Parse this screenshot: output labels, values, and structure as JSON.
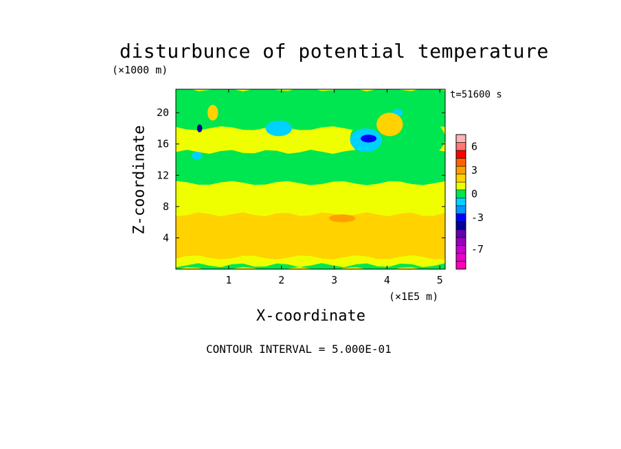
{
  "chart_data": {
    "type": "heatmap",
    "title": "disturbunce of potential temperature",
    "time_label": "t=51600 s",
    "xlabel": "X-coordinate",
    "ylabel": "Z-coordinate",
    "x_unit": "(×1E5 m)",
    "y_unit": "(×1000 m)",
    "xlim": [
      0,
      5.1
    ],
    "ylim": [
      0,
      23
    ],
    "x_ticks": [
      1,
      2,
      3,
      4,
      5
    ],
    "y_ticks": [
      4,
      8,
      12,
      16,
      20
    ],
    "contour_interval_text": "CONTOUR INTERVAL = 5.000E-01",
    "colorbar": {
      "tick_labels": [
        "6",
        "3",
        "0",
        "-3",
        "-7"
      ],
      "tick_values": [
        6,
        3,
        0,
        -3,
        -7
      ],
      "vmin": -9,
      "vmax": 8,
      "levels": [
        {
          "from": -9,
          "to": -8,
          "color": "#ff00b4"
        },
        {
          "from": -8,
          "to": -7,
          "color": "#e600c8"
        },
        {
          "from": -7,
          "to": -6,
          "color": "#c800d2"
        },
        {
          "from": -6,
          "to": -5,
          "color": "#9600be"
        },
        {
          "from": -5,
          "to": -4,
          "color": "#6400aa"
        },
        {
          "from": -4,
          "to": -3,
          "color": "#000096"
        },
        {
          "from": -3,
          "to": -2,
          "color": "#0000ff"
        },
        {
          "from": -2,
          "to": -1,
          "color": "#0096ff"
        },
        {
          "from": -1,
          "to": 0,
          "color": "#00d2ff"
        },
        {
          "from": 0,
          "to": 1,
          "color": "#00e650"
        },
        {
          "from": 1,
          "to": 2,
          "color": "#f0ff00"
        },
        {
          "from": 2,
          "to": 3,
          "color": "#ffd200"
        },
        {
          "from": 3,
          "to": 4,
          "color": "#ffa000"
        },
        {
          "from": 4,
          "to": 5,
          "color": "#ff6400"
        },
        {
          "from": 5,
          "to": 6,
          "color": "#ff0000"
        },
        {
          "from": 6,
          "to": 7,
          "color": "#ff7878"
        },
        {
          "from": 7,
          "to": 8,
          "color": "#ffb4b4"
        }
      ]
    },
    "regions": [
      {
        "value": 1.5,
        "x": [
          0,
          5.1
        ],
        "y": [
          0,
          23
        ],
        "shape": "background"
      },
      {
        "value": 2.5,
        "x": [
          0,
          5.1
        ],
        "y": [
          1.5,
          7
        ],
        "shape": "band"
      },
      {
        "value": 3.5,
        "x": [
          2.9,
          3.4
        ],
        "y": [
          6,
          7
        ],
        "shape": "blob"
      },
      {
        "value": 0.5,
        "x": [
          0,
          5.1
        ],
        "y": [
          11,
          15
        ],
        "shape": "band"
      },
      {
        "value": 0.5,
        "x": [
          0,
          5.1
        ],
        "y": [
          18,
          23
        ],
        "shape": "band"
      },
      {
        "value": 0.5,
        "x": [
          3.3,
          5.1
        ],
        "y": [
          13.5,
          20
        ],
        "shape": "blob"
      },
      {
        "value": -0.5,
        "x": [
          3.3,
          3.9
        ],
        "y": [
          15,
          18
        ],
        "shape": "blob"
      },
      {
        "value": -2.5,
        "x": [
          3.5,
          3.8
        ],
        "y": [
          16.2,
          17.2
        ],
        "shape": "blob"
      },
      {
        "value": -0.5,
        "x": [
          1.7,
          2.2
        ],
        "y": [
          17,
          19
        ],
        "shape": "blob"
      },
      {
        "value": -0.5,
        "x": [
          0.3,
          0.5
        ],
        "y": [
          14,
          15
        ],
        "shape": "blob"
      },
      {
        "value": -3.5,
        "x": [
          0.4,
          0.5
        ],
        "y": [
          17.5,
          18.5
        ],
        "shape": "blob"
      },
      {
        "value": -0.5,
        "x": [
          4.1,
          4.3
        ],
        "y": [
          19.5,
          20.5
        ],
        "shape": "blob"
      },
      {
        "value": 2.5,
        "x": [
          3.8,
          4.3
        ],
        "y": [
          17,
          20
        ],
        "shape": "blob"
      },
      {
        "value": 2.5,
        "x": [
          0.6,
          0.8
        ],
        "y": [
          19,
          21
        ],
        "shape": "blob"
      },
      {
        "value": 0.5,
        "x": [
          0,
          5.1
        ],
        "y": [
          0,
          0.5
        ],
        "shape": "band"
      }
    ]
  }
}
